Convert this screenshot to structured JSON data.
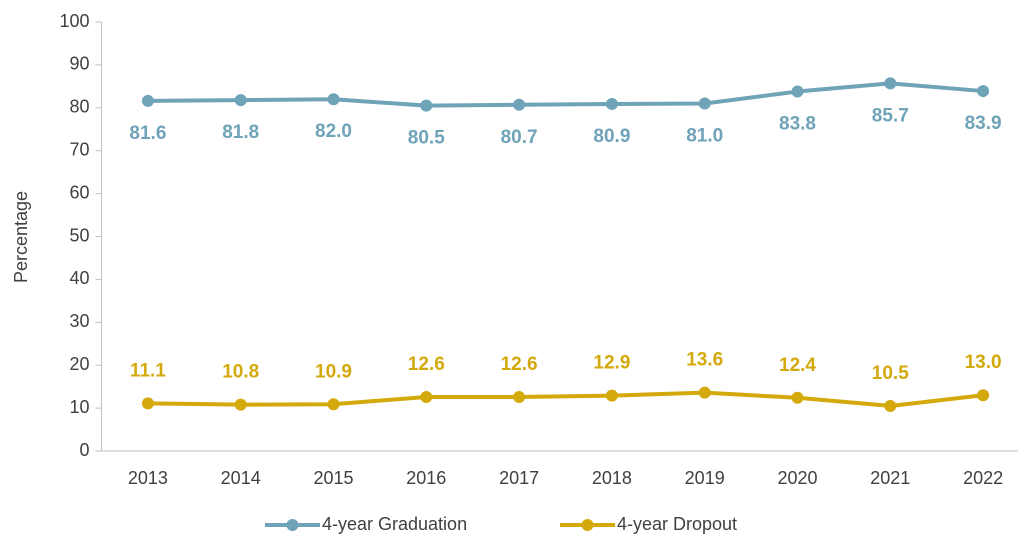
{
  "chart_data": {
    "type": "line",
    "y_axis_label": "Percentage",
    "categories": [
      "2013",
      "2014",
      "2015",
      "2016",
      "2017",
      "2018",
      "2019",
      "2020",
      "2021",
      "2022"
    ],
    "series": [
      {
        "name": "4-year Graduation",
        "color": "#6fa3b8",
        "label_position": "below",
        "values": [
          81.6,
          81.8,
          82.0,
          80.5,
          80.7,
          80.9,
          81.0,
          83.8,
          85.7,
          83.9
        ],
        "value_labels": [
          "81.6",
          "81.8",
          "82.0",
          "80.5",
          "80.7",
          "80.9",
          "81.0",
          "83.8",
          "85.7",
          "83.9"
        ]
      },
      {
        "name": "4-year Dropout",
        "color": "#d4a90c",
        "label_position": "above",
        "values": [
          11.1,
          10.8,
          10.9,
          12.6,
          12.6,
          12.9,
          13.6,
          12.4,
          10.5,
          13.0
        ],
        "value_labels": [
          "11.1",
          "10.8",
          "10.9",
          "12.6",
          "12.6",
          "12.9",
          "13.6",
          "12.4",
          "10.5",
          "13.0"
        ]
      }
    ],
    "ylim": [
      0,
      100
    ],
    "yticks": [
      0,
      10,
      20,
      30,
      40,
      50,
      60,
      70,
      80,
      90,
      100
    ]
  }
}
